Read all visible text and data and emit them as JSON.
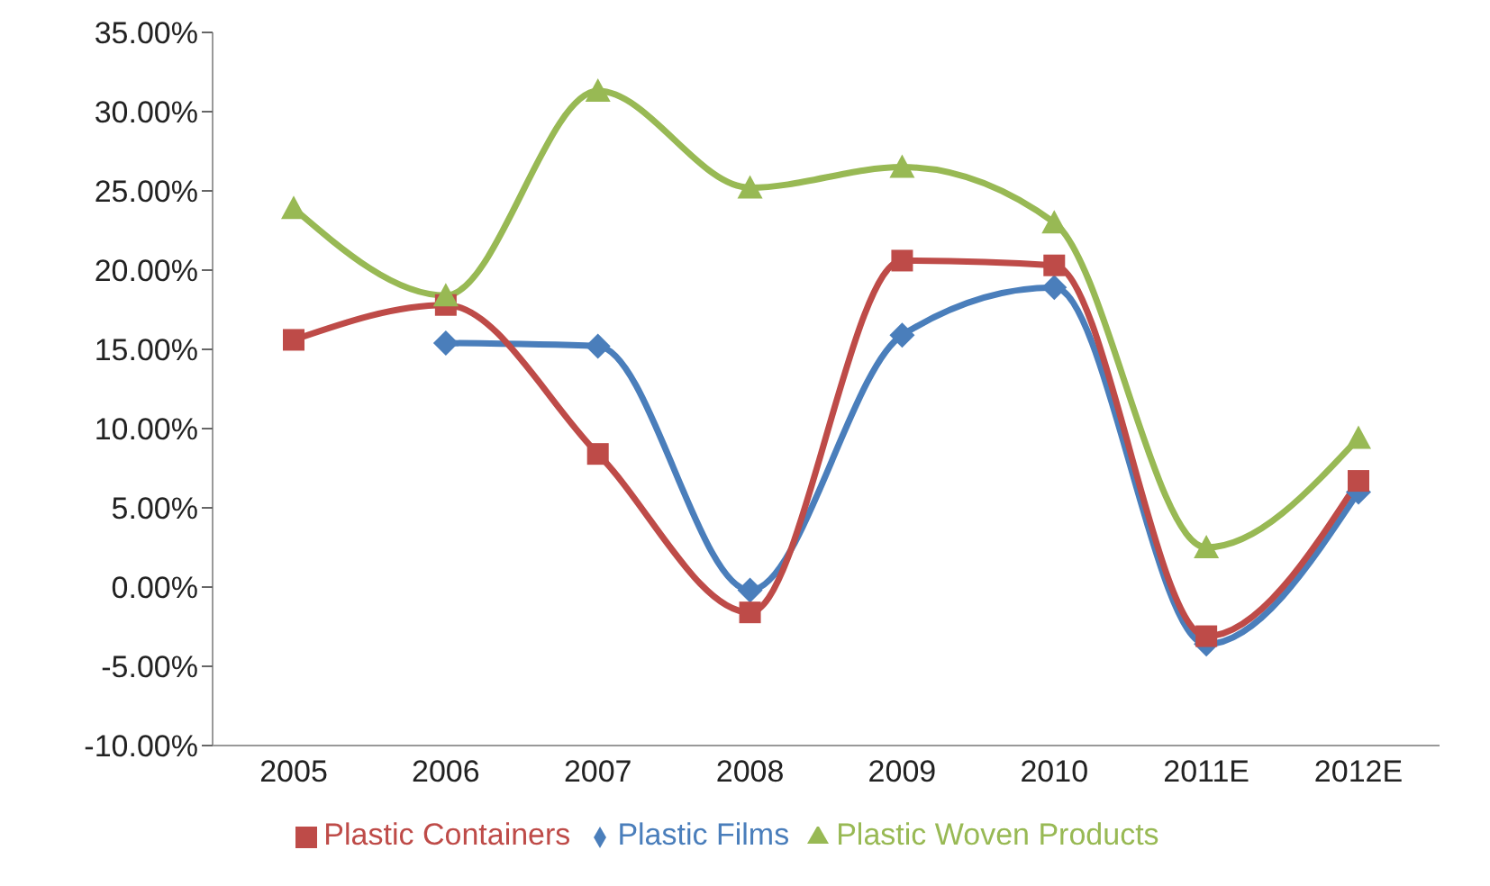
{
  "chart_data": {
    "type": "line",
    "categories": [
      "2005",
      "2006",
      "2007",
      "2008",
      "2009",
      "2010",
      "2011E",
      "2012E"
    ],
    "series": [
      {
        "name": "Plastic Films",
        "color": "#4a7ebb",
        "marker": "diamond",
        "values": [
          null,
          15.4,
          15.2,
          -0.2,
          15.9,
          18.9,
          -3.6,
          6.0
        ]
      },
      {
        "name": "Plastic Containers",
        "color": "#be4b48",
        "marker": "square",
        "values": [
          15.6,
          17.8,
          8.4,
          -1.6,
          20.6,
          20.3,
          -3.1,
          6.7
        ]
      },
      {
        "name": "Plastic Woven Products",
        "color": "#98b954",
        "marker": "triangle",
        "values": [
          23.9,
          18.4,
          31.3,
          25.2,
          26.5,
          23.0,
          2.5,
          9.4
        ]
      }
    ],
    "ylim": [
      -10,
      35
    ],
    "yticks": [
      {
        "value": -10,
        "label": "-10.00%"
      },
      {
        "value": -5,
        "label": "-5.00%"
      },
      {
        "value": 0,
        "label": "0.00%"
      },
      {
        "value": 5,
        "label": "5.00%"
      },
      {
        "value": 10,
        "label": "10.00%"
      },
      {
        "value": 15,
        "label": "15.00%"
      },
      {
        "value": 20,
        "label": "20.00%"
      },
      {
        "value": 25,
        "label": "25.00%"
      },
      {
        "value": 30,
        "label": "30.00%"
      },
      {
        "value": 35,
        "label": "35.00%"
      }
    ],
    "grid": false,
    "legend": "bottom"
  }
}
